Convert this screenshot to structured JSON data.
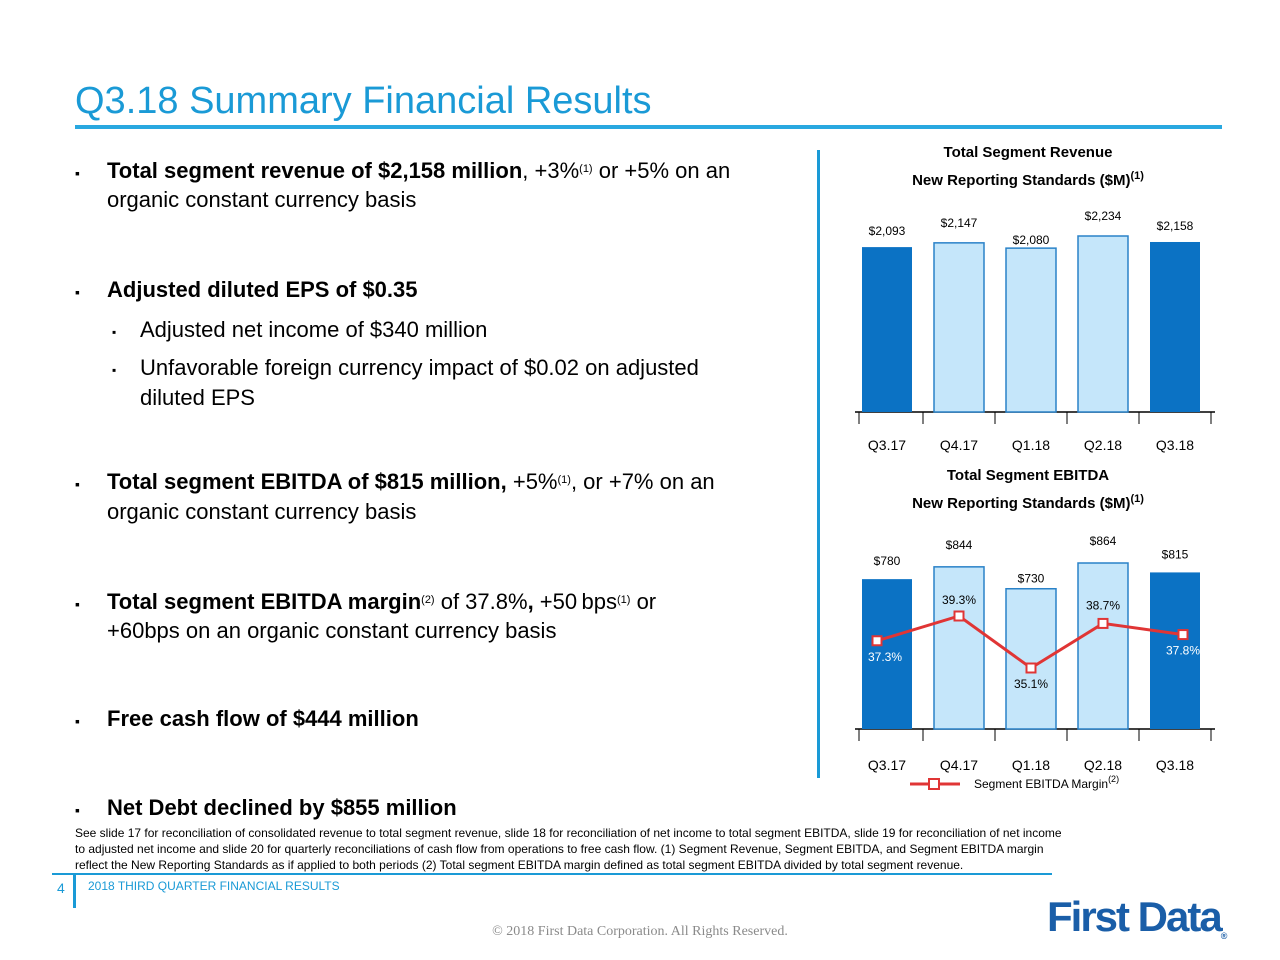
{
  "page": {
    "title": "Q3.18 Summary Financial Results",
    "page_number": "4",
    "footer_label": "2018 THIRD QUARTER FINANCIAL RESULTS",
    "copyright": "© 2018 First Data Corporation. All Rights Reserved.",
    "logo_text": "First Data",
    "logo_mark": "®"
  },
  "bullets": {
    "b1_bold": "Total segment revenue of $2,158 million",
    "b1_rest": ", +3%",
    "b1_sup": "(1)",
    "b1_tail": " or +5% on an",
    "b1_line2": "organic constant currency basis",
    "b2": "Adjusted diluted EPS of $0.35",
    "b2_sub1": "Adjusted net income of $340 million",
    "b2_sub2_line1": "Unfavorable foreign currency impact of $0.02 on adjusted",
    "b2_sub2_line2": "diluted EPS",
    "b3_bold": "Total segment EBITDA of $815 million,",
    "b3_rest": " +5%",
    "b3_sup": "(1)",
    "b3_tail": ", or +7% on an",
    "b3_line2": "organic constant currency basis",
    "b4_bold": "Total segment EBITDA margin",
    "b4_sup": "(2)",
    "b4_rest": " of 37.8%",
    "b4_comma": ",",
    "b4_rest2": " +50 bps",
    "b4_sup2": "(1)",
    "b4_tail": " or",
    "b4_line2": "+60bps on an organic constant currency basis",
    "b5": "Free cash flow of $444 million",
    "b6": "Net Debt declined by $855 million",
    "marker": "▪"
  },
  "footnote": {
    "line1": "See slide 17 for reconciliation of consolidated revenue to total segment revenue, slide 18 for reconciliation of net income to total segment EBITDA, slide 19 for reconciliation of net income",
    "line2": "to adjusted net income and slide 20 for quarterly reconciliations of cash flow from operations to free cash flow. (1) Segment Revenue, Segment EBITDA, and Segment EBITDA margin",
    "line3": "reflect the New Reporting Standards as if applied to both periods (2) Total segment EBITDA margin defined as total segment EBITDA divided by total segment revenue."
  },
  "colors": {
    "accent": "#1a9ad6",
    "dark_bar": "#0b72c4",
    "light_bar": "#c5e6fa",
    "margin_line": "#e03535"
  },
  "chart_data": [
    {
      "type": "bar",
      "title": "Total Segment Revenue",
      "subtitle": "New Reporting Standards ($M)",
      "subtitle_sup": "(1)",
      "categories": [
        "Q3.17",
        "Q4.17",
        "Q1.18",
        "Q2.18",
        "Q3.18"
      ],
      "values": [
        2093,
        2147,
        2080,
        2234,
        2158
      ],
      "value_labels": [
        "$2,093",
        "$2,147",
        "$2,080",
        "$2,234",
        "$2,158"
      ],
      "highlight": [
        true,
        false,
        false,
        false,
        true
      ]
    },
    {
      "type": "bar",
      "title": "Total Segment EBITDA",
      "subtitle": "New Reporting Standards ($M)",
      "subtitle_sup": "(1)",
      "categories": [
        "Q3.17",
        "Q4.17",
        "Q1.18",
        "Q2.18",
        "Q3.18"
      ],
      "values": [
        780,
        844,
        730,
        864,
        815
      ],
      "value_labels": [
        "$780",
        "$844",
        "$730",
        "$864",
        "$815"
      ],
      "highlight": [
        true,
        false,
        false,
        false,
        true
      ],
      "line_series": {
        "name": "Segment EBITDA Margin",
        "name_sup": "(2)",
        "values": [
          37.3,
          39.3,
          35.1,
          38.7,
          37.8
        ],
        "labels": [
          "37.3%",
          "39.3%",
          "35.1%",
          "38.7%",
          "37.8%"
        ]
      }
    }
  ]
}
